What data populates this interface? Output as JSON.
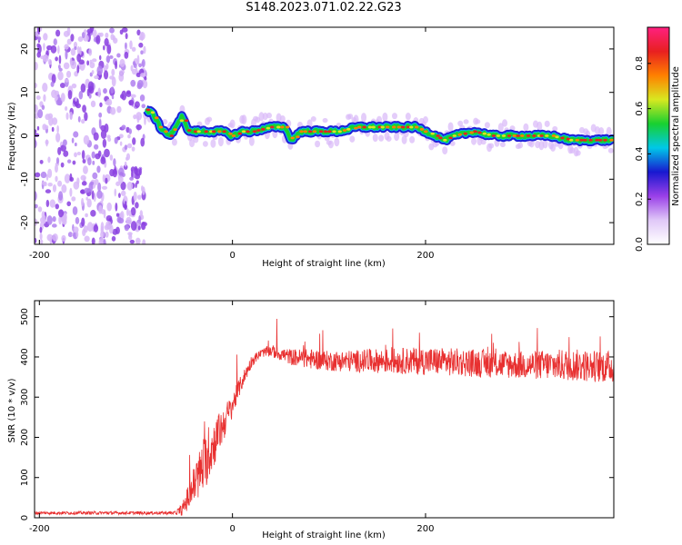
{
  "title": "S148.2023.071.02.22.G23",
  "colors": {
    "snr_line": "#e83030",
    "ridge_green": "#18d030",
    "ridge_blue": "#2020d8",
    "ridge_peak": "#e82020",
    "noise_purple": "#8a40e0",
    "noise_light": "#d8b8f8"
  },
  "chart_data": [
    {
      "type": "heatmap",
      "title": "",
      "xlabel": "Height of straight line (km)",
      "ylabel": "Frequency (Hz)",
      "xlim": [
        -205,
        395
      ],
      "ylim": [
        -25,
        25
      ],
      "xticks": [
        -200,
        0,
        200
      ],
      "yticks": [
        -20,
        -10,
        0,
        10,
        20
      ],
      "noise_region_x": [
        -205,
        -90
      ],
      "ridge": {
        "x": [
          -90,
          -82,
          -75,
          -70,
          -65,
          -58,
          -52,
          -48,
          -44,
          -38,
          -30,
          -10,
          0,
          10,
          20,
          40,
          55,
          58,
          62,
          70,
          90,
          110,
          130,
          150,
          170,
          190,
          200,
          210,
          220,
          230,
          250,
          270,
          290,
          310,
          330,
          350,
          370,
          395
        ],
        "y": [
          6,
          5,
          2,
          1,
          0,
          2,
          5,
          2,
          1,
          1,
          1,
          1,
          0,
          1,
          1,
          2,
          2,
          0,
          -1,
          1,
          1,
          1,
          2,
          2,
          2,
          2,
          1,
          0,
          -1,
          0,
          1,
          0,
          0,
          0,
          0,
          -1,
          -1,
          -1
        ]
      },
      "colorbar": {
        "label": "Normalized spectral amplitude",
        "ticks": [
          "0.0",
          "0.2",
          "0.4",
          "0.6",
          "0.8"
        ],
        "stops": [
          "#ffffff",
          "#e0c8f8",
          "#9a40e8",
          "#1818d0",
          "#00c8e8",
          "#18d030",
          "#d8e820",
          "#ff8000",
          "#e82020",
          "#ff2080"
        ]
      }
    },
    {
      "type": "line",
      "title": "",
      "xlabel": "Height of straight line (km)",
      "ylabel": "SNR (10 * v/v)",
      "xlim": [
        -205,
        395
      ],
      "ylim": [
        0,
        540
      ],
      "xticks": [
        -200,
        0,
        200
      ],
      "yticks": [
        0,
        100,
        200,
        300,
        400,
        500
      ],
      "envelope": {
        "x": [
          -205,
          -60,
          -52,
          -40,
          -30,
          -20,
          -10,
          0,
          10,
          20,
          30,
          40,
          60,
          80,
          100,
          150,
          200,
          250,
          300,
          350,
          395
        ],
        "y": [
          12,
          12,
          20,
          80,
          130,
          180,
          230,
          280,
          340,
          390,
          410,
          415,
          400,
          395,
          390,
          390,
          390,
          385,
          380,
          380,
          375
        ],
        "spread": [
          4,
          4,
          15,
          50,
          70,
          60,
          45,
          30,
          20,
          15,
          10,
          15,
          20,
          25,
          25,
          30,
          35,
          35,
          35,
          40,
          40
        ]
      }
    }
  ]
}
